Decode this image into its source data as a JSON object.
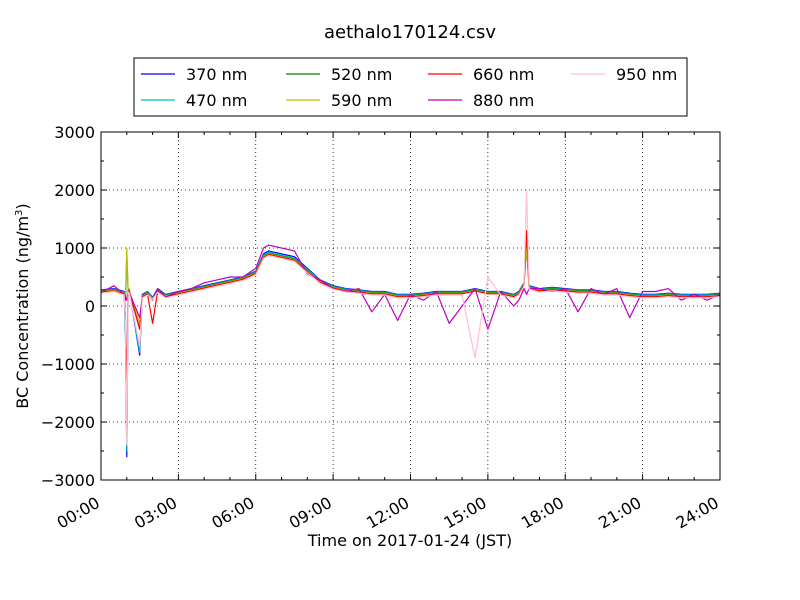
{
  "chart_data": {
    "type": "line",
    "title": "aethalo170124.csv",
    "xlabel": "Time on 2017-01-24 (JST)",
    "ylabel": "BC Concentration (ng/m³)",
    "ylabel_parts": [
      "BC Concentration (ng/m",
      "3",
      ")"
    ],
    "xlim": [
      0,
      24
    ],
    "ylim": [
      -3000,
      3000
    ],
    "x_unit": "hours",
    "x_ticks": [
      0,
      3,
      6,
      9,
      12,
      15,
      18,
      21,
      24
    ],
    "x_tick_labels": [
      "00:00",
      "03:00",
      "06:00",
      "09:00",
      "12:00",
      "15:00",
      "18:00",
      "21:00",
      "24:00"
    ],
    "y_ticks": [
      -3000,
      -2000,
      -1000,
      0,
      1000,
      2000,
      3000
    ],
    "y_tick_labels": [
      "−3000",
      "−2000",
      "−1000",
      "0",
      "1000",
      "2000",
      "3000"
    ],
    "grid": true,
    "legend_position": "top, above plot",
    "x": [
      0,
      0.5,
      0.9,
      0.95,
      1.0,
      1.05,
      1.1,
      1.5,
      1.6,
      1.8,
      2.0,
      2.2,
      2.5,
      3.0,
      3.5,
      4.0,
      4.5,
      5.0,
      5.5,
      6.0,
      6.3,
      6.5,
      7.0,
      7.5,
      8.0,
      8.5,
      9.0,
      9.5,
      10.0,
      10.5,
      11.0,
      11.5,
      12.0,
      12.5,
      13.0,
      13.5,
      14.0,
      14.5,
      15.0,
      15.5,
      16.0,
      16.2,
      16.4,
      16.5,
      16.6,
      17.0,
      17.5,
      18.0,
      18.5,
      19.0,
      19.5,
      20.0,
      20.5,
      21.0,
      21.5,
      22.0,
      22.5,
      23.0,
      23.5,
      24.0
    ],
    "series": [
      {
        "name": "370 nm",
        "color": "#0000ff",
        "values": [
          280,
          300,
          250,
          -500,
          -2600,
          300,
          280,
          -850,
          200,
          250,
          150,
          300,
          200,
          250,
          300,
          350,
          400,
          450,
          500,
          600,
          900,
          950,
          900,
          850,
          650,
          450,
          350,
          300,
          280,
          250,
          250,
          200,
          200,
          220,
          250,
          250,
          250,
          300,
          250,
          250,
          200,
          250,
          400,
          1100,
          350,
          300,
          320,
          300,
          280,
          280,
          250,
          250,
          220,
          200,
          200,
          220,
          200,
          200,
          200,
          220
        ]
      },
      {
        "name": "470 nm",
        "color": "#00bfbf",
        "values": [
          270,
          290,
          240,
          -450,
          -2500,
          290,
          270,
          -800,
          190,
          240,
          140,
          290,
          190,
          240,
          290,
          340,
          390,
          440,
          490,
          590,
          880,
          930,
          880,
          830,
          630,
          440,
          340,
          290,
          270,
          240,
          240,
          190,
          190,
          210,
          240,
          240,
          240,
          290,
          240,
          240,
          190,
          240,
          390,
          1080,
          340,
          290,
          310,
          290,
          270,
          270,
          240,
          240,
          210,
          190,
          190,
          210,
          190,
          190,
          190,
          210
        ]
      },
      {
        "name": "520 nm",
        "color": "#008000",
        "values": [
          260,
          280,
          230,
          100,
          900,
          280,
          260,
          -400,
          180,
          230,
          130,
          280,
          180,
          230,
          280,
          330,
          380,
          430,
          480,
          580,
          860,
          910,
          860,
          810,
          610,
          430,
          330,
          280,
          260,
          230,
          230,
          180,
          180,
          200,
          230,
          230,
          230,
          280,
          230,
          230,
          180,
          230,
          380,
          1050,
          330,
          280,
          300,
          280,
          260,
          260,
          230,
          230,
          200,
          180,
          180,
          200,
          180,
          180,
          180,
          200
        ]
      },
      {
        "name": "590 nm",
        "color": "#bfbf00",
        "values": [
          250,
          270,
          220,
          200,
          1000,
          270,
          250,
          -300,
          170,
          220,
          120,
          270,
          170,
          220,
          270,
          320,
          370,
          420,
          470,
          570,
          850,
          900,
          850,
          800,
          600,
          420,
          320,
          270,
          250,
          220,
          220,
          170,
          170,
          190,
          220,
          220,
          220,
          270,
          220,
          220,
          170,
          220,
          370,
          1000,
          320,
          270,
          290,
          270,
          250,
          250,
          220,
          220,
          190,
          170,
          170,
          190,
          170,
          170,
          170,
          190
        ]
      },
      {
        "name": "660 nm",
        "color": "#ff0000",
        "values": [
          240,
          260,
          210,
          -200,
          -1500,
          260,
          240,
          -400,
          160,
          210,
          -300,
          260,
          160,
          210,
          260,
          310,
          360,
          410,
          460,
          560,
          840,
          890,
          840,
          790,
          590,
          410,
          310,
          260,
          240,
          210,
          210,
          160,
          160,
          180,
          210,
          210,
          210,
          260,
          210,
          210,
          160,
          210,
          360,
          1300,
          310,
          260,
          280,
          260,
          240,
          240,
          210,
          210,
          180,
          160,
          160,
          180,
          160,
          160,
          160,
          180
        ]
      },
      {
        "name": "880 nm",
        "color": "#bf00bf",
        "values": [
          230,
          350,
          200,
          150,
          100,
          250,
          230,
          -200,
          150,
          200,
          100,
          300,
          150,
          250,
          300,
          400,
          450,
          500,
          500,
          650,
          1000,
          1050,
          1000,
          950,
          550,
          450,
          300,
          250,
          300,
          -100,
          200,
          -250,
          200,
          100,
          250,
          -300,
          0,
          300,
          -400,
          250,
          0,
          100,
          300,
          200,
          300,
          300,
          250,
          300,
          -100,
          300,
          200,
          300,
          -200,
          250,
          250,
          300,
          100,
          200,
          100,
          200
        ]
      },
      {
        "name": "950 nm",
        "color": "#ffc0cb",
        "values": [
          220,
          250,
          190,
          -300,
          -2400,
          240,
          220,
          -700,
          140,
          190,
          110,
          240,
          140,
          190,
          240,
          290,
          340,
          390,
          440,
          540,
          820,
          870,
          820,
          770,
          570,
          390,
          290,
          240,
          220,
          190,
          190,
          140,
          140,
          160,
          190,
          190,
          190,
          -900,
          500,
          190,
          140,
          190,
          340,
          2000,
          290,
          240,
          260,
          240,
          220,
          220,
          190,
          190,
          160,
          140,
          140,
          160,
          140,
          140,
          140,
          160
        ]
      }
    ]
  }
}
